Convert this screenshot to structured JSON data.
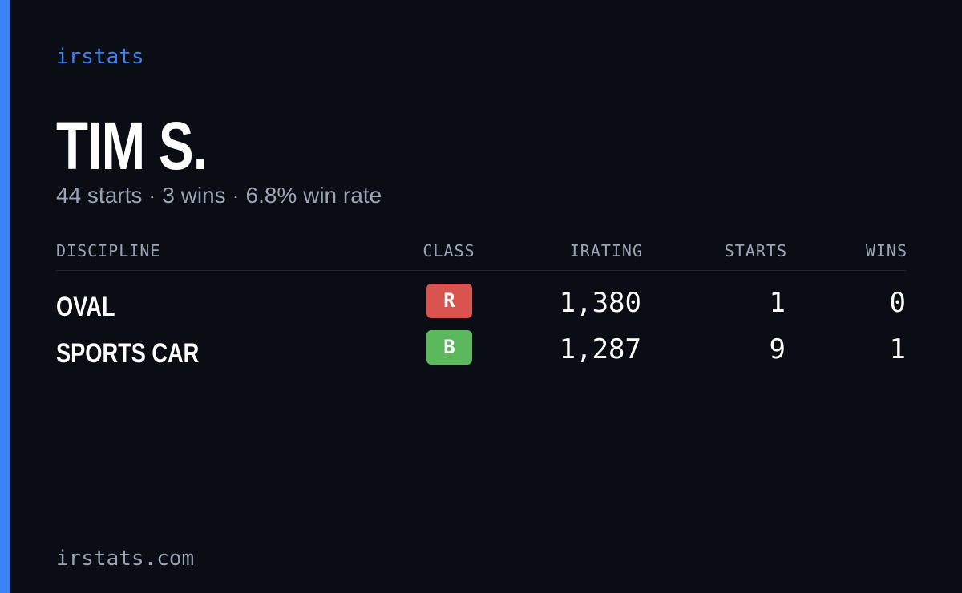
{
  "brand": "irstats",
  "driver": {
    "name": "TIM S.",
    "summary": "44 starts · 3 wins · 6.8% win rate"
  },
  "table": {
    "headers": [
      "DISCIPLINE",
      "CLASS",
      "IRATING",
      "STARTS",
      "WINS"
    ],
    "rows": [
      [
        "OVAL",
        "R",
        "1,380",
        "1",
        "0"
      ],
      [
        "SPORTS CAR",
        "B",
        "1,287",
        "9",
        "1"
      ]
    ]
  },
  "footer": "irstats.com"
}
